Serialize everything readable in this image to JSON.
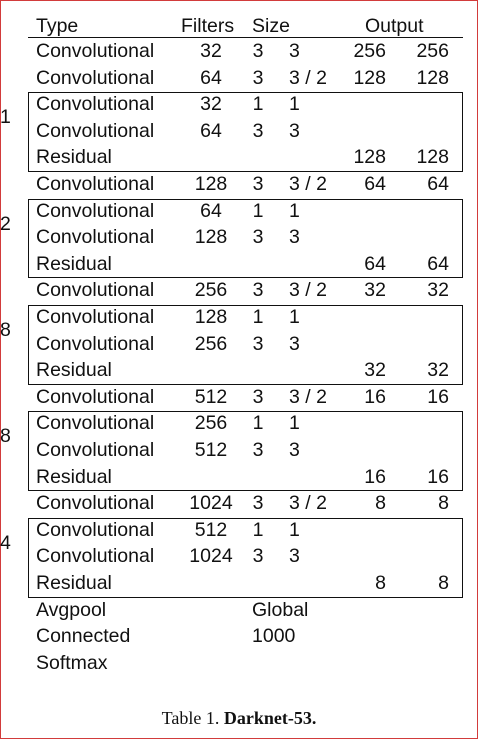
{
  "headers": {
    "type": "Type",
    "filters": "Filters",
    "size": "Size",
    "output": "Output"
  },
  "rows": [
    {
      "type": "Convolutional",
      "filters": "32",
      "k": "3",
      "s": "3",
      "o1": "256",
      "o2": "256"
    },
    {
      "type": "Convolutional",
      "filters": "64",
      "k": "3",
      "s": "3 / 2",
      "o1": "128",
      "o2": "128"
    },
    {
      "type": "Convolutional",
      "filters": "32",
      "k": "1",
      "s": "1",
      "o1": "",
      "o2": "",
      "rep": "1"
    },
    {
      "type": "Convolutional",
      "filters": "64",
      "k": "3",
      "s": "3",
      "o1": "",
      "o2": ""
    },
    {
      "type": "Residual",
      "filters": "",
      "k": "",
      "s": "",
      "o1": "128",
      "o2": "128"
    },
    {
      "type": "Convolutional",
      "filters": "128",
      "k": "3",
      "s": "3 / 2",
      "o1": "64",
      "o2": "64"
    },
    {
      "type": "Convolutional",
      "filters": "64",
      "k": "1",
      "s": "1",
      "o1": "",
      "o2": "",
      "rep": "2"
    },
    {
      "type": "Convolutional",
      "filters": "128",
      "k": "3",
      "s": "3",
      "o1": "",
      "o2": ""
    },
    {
      "type": "Residual",
      "filters": "",
      "k": "",
      "s": "",
      "o1": "64",
      "o2": "64"
    },
    {
      "type": "Convolutional",
      "filters": "256",
      "k": "3",
      "s": "3 / 2",
      "o1": "32",
      "o2": "32"
    },
    {
      "type": "Convolutional",
      "filters": "128",
      "k": "1",
      "s": "1",
      "o1": "",
      "o2": "",
      "rep": "8"
    },
    {
      "type": "Convolutional",
      "filters": "256",
      "k": "3",
      "s": "3",
      "o1": "",
      "o2": ""
    },
    {
      "type": "Residual",
      "filters": "",
      "k": "",
      "s": "",
      "o1": "32",
      "o2": "32"
    },
    {
      "type": "Convolutional",
      "filters": "512",
      "k": "3",
      "s": "3 / 2",
      "o1": "16",
      "o2": "16"
    },
    {
      "type": "Convolutional",
      "filters": "256",
      "k": "1",
      "s": "1",
      "o1": "",
      "o2": "",
      "rep": "8"
    },
    {
      "type": "Convolutional",
      "filters": "512",
      "k": "3",
      "s": "3",
      "o1": "",
      "o2": ""
    },
    {
      "type": "Residual",
      "filters": "",
      "k": "",
      "s": "",
      "o1": "16",
      "o2": "16"
    },
    {
      "type": "Convolutional",
      "filters": "1024",
      "k": "3",
      "s": "3 / 2",
      "o1": "8",
      "o2": "8"
    },
    {
      "type": "Convolutional",
      "filters": "512",
      "k": "1",
      "s": "1",
      "o1": "",
      "o2": "",
      "rep": "4"
    },
    {
      "type": "Convolutional",
      "filters": "1024",
      "k": "3",
      "s": "3",
      "o1": "",
      "o2": ""
    },
    {
      "type": "Residual",
      "filters": "",
      "k": "",
      "s": "",
      "o1": "8",
      "o2": "8"
    }
  ],
  "footer_rows": [
    {
      "type": "Avgpool",
      "size": "Global"
    },
    {
      "type": "Connected",
      "size": "1000"
    },
    {
      "type": "Softmax",
      "size": ""
    }
  ],
  "caption": {
    "prefix": "Table 1. ",
    "title": "Darknet-53."
  }
}
